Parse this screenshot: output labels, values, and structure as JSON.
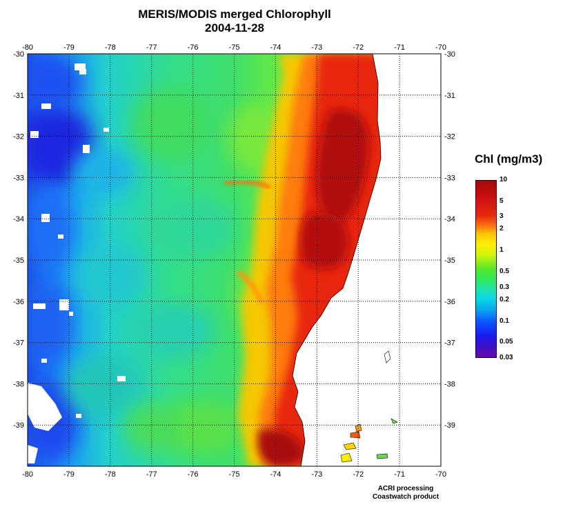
{
  "title": {
    "line1": "MERIS/MODIS merged Chlorophyll",
    "line2": "2004-11-28"
  },
  "map": {
    "lon_ticks": [
      "-80",
      "-79",
      "-78",
      "-77",
      "-76",
      "-75",
      "-74",
      "-73",
      "-72",
      "-71",
      "-70"
    ],
    "lat_ticks": [
      "-30",
      "-31",
      "-32",
      "-33",
      "-34",
      "-35",
      "-36",
      "-37",
      "-38",
      "-39"
    ],
    "lon_range": [
      -80,
      -70
    ],
    "lat_range": [
      -30,
      -40
    ],
    "grid": "dotted"
  },
  "legend": {
    "title": "Chl (mg/m3)",
    "labels": [
      "10",
      "5",
      "3",
      "2",
      "1",
      "0.5",
      "0.3",
      "0.2",
      "0.1",
      "0.05",
      "0.03"
    ],
    "scale": "log"
  },
  "colors": {
    "very_low": "#1f2fe8",
    "low": "#18b7f0",
    "mid": "#36d965",
    "high": "#ffb000",
    "very_high": "#b70a0a",
    "land": "#ffffff",
    "no_data": "#ffffff"
  },
  "credits": {
    "line1": "ACRI processing",
    "line2": "Coastwatch product"
  }
}
